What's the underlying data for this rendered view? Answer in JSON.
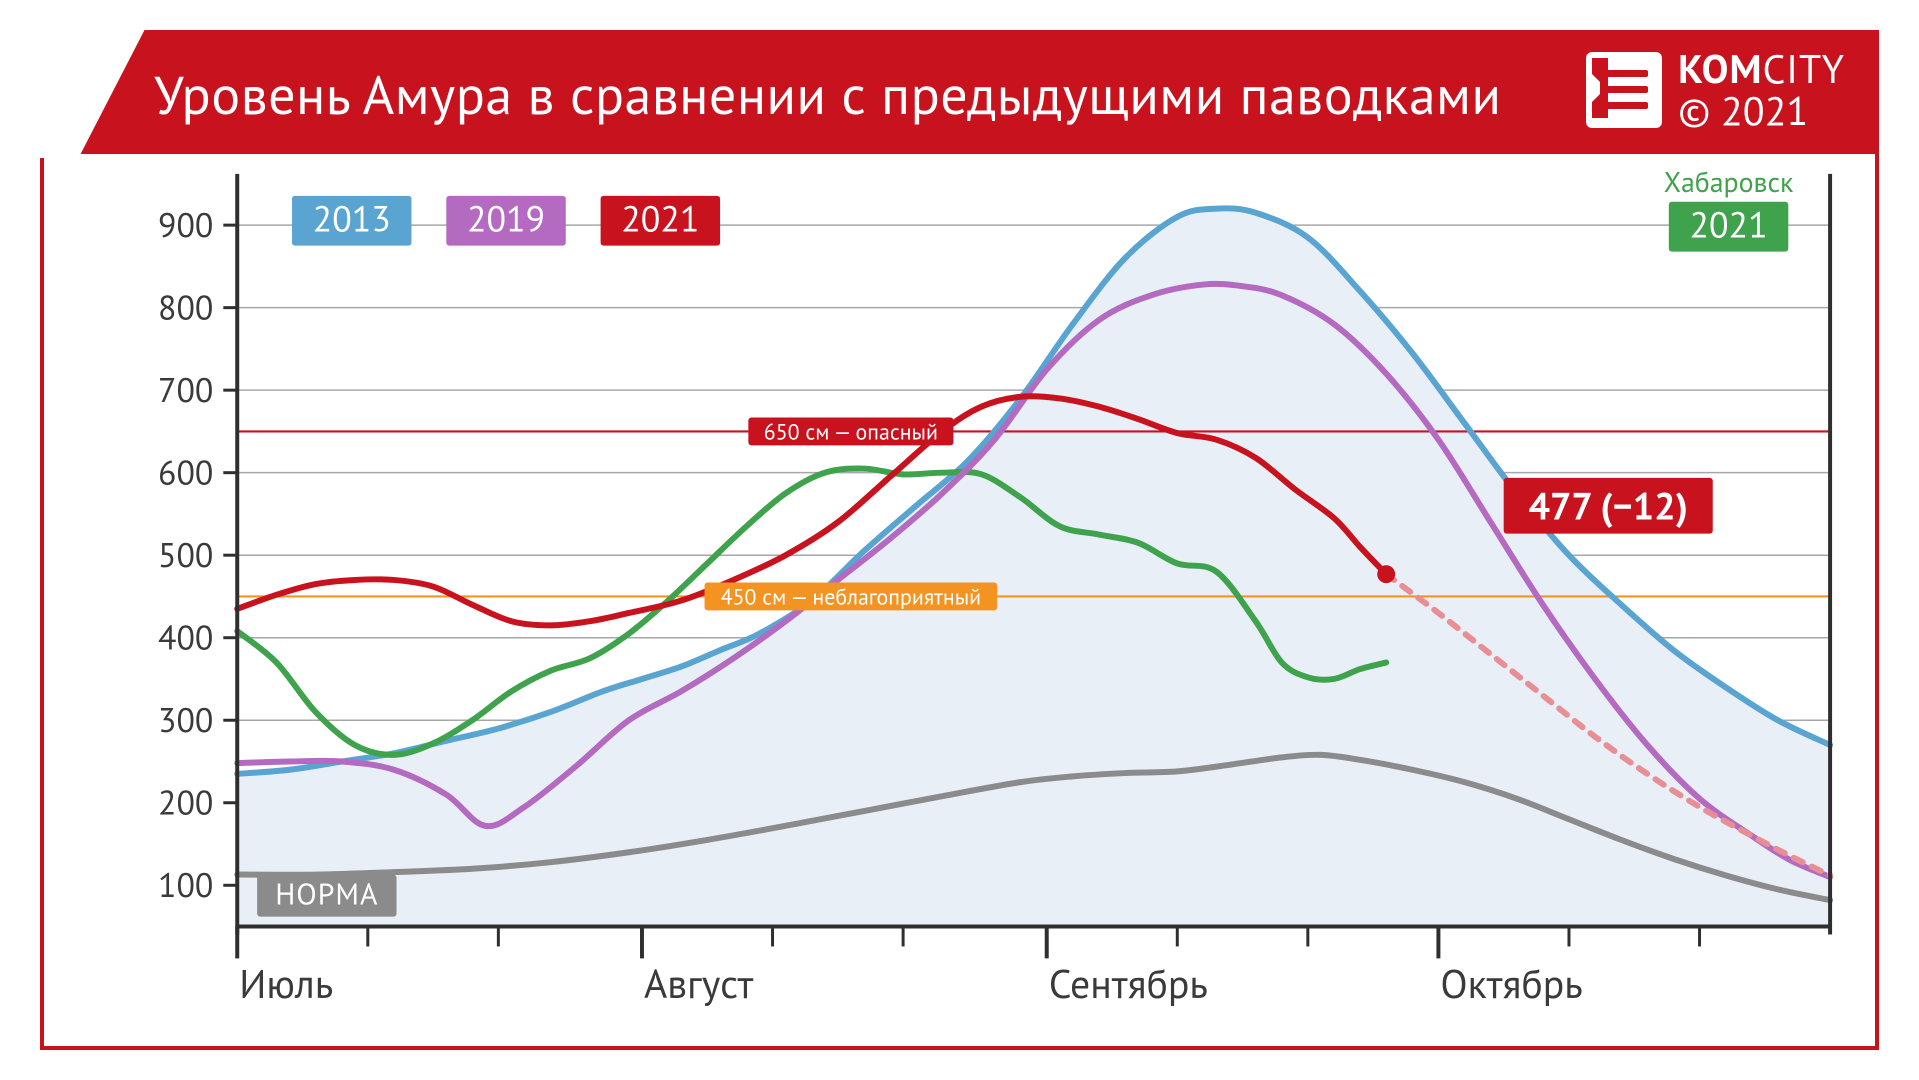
{
  "header": {
    "title": "Уровень Амура в сравнении с предыдущими паводками",
    "brand_kom": "KOM",
    "brand_city": "CITY",
    "copyright": "© 2021"
  },
  "chart": {
    "type": "line",
    "background_color": "#ffffff",
    "frame_color": "#c8121e",
    "area_fill_2013": "#e8eff6",
    "grid_color": "#a7a7a7",
    "axis_color": "#2f2f2f",
    "tick_color": "#2f2f2f",
    "ylim": [
      50,
      950
    ],
    "yticks": [
      100,
      200,
      300,
      400,
      500,
      600,
      700,
      800,
      900
    ],
    "ytick_fontsize": 34,
    "x_range_days": [
      0,
      122
    ],
    "x_months": [
      {
        "label": "Июль",
        "start_day": 0
      },
      {
        "label": "Август",
        "start_day": 31
      },
      {
        "label": "Сентябрь",
        "start_day": 62
      },
      {
        "label": "Октябрь",
        "start_day": 92
      }
    ],
    "x_minor_ticks": [
      10,
      20,
      41,
      51,
      72,
      82,
      102,
      112
    ],
    "xtick_fontsize": 40,
    "series": {
      "s2013": {
        "label": "2013",
        "color": "#59a4d1",
        "stroke_width": 6,
        "area": true,
        "points": [
          [
            0,
            235
          ],
          [
            4,
            240
          ],
          [
            8,
            250
          ],
          [
            12,
            260
          ],
          [
            16,
            275
          ],
          [
            20,
            290
          ],
          [
            24,
            310
          ],
          [
            28,
            335
          ],
          [
            31,
            350
          ],
          [
            34,
            365
          ],
          [
            37,
            385
          ],
          [
            40,
            405
          ],
          [
            44,
            445
          ],
          [
            48,
            505
          ],
          [
            52,
            560
          ],
          [
            56,
            615
          ],
          [
            60,
            690
          ],
          [
            64,
            780
          ],
          [
            68,
            860
          ],
          [
            72,
            910
          ],
          [
            75,
            920
          ],
          [
            78,
            915
          ],
          [
            82,
            885
          ],
          [
            86,
            820
          ],
          [
            90,
            745
          ],
          [
            94,
            660
          ],
          [
            98,
            575
          ],
          [
            102,
            500
          ],
          [
            106,
            440
          ],
          [
            110,
            385
          ],
          [
            114,
            340
          ],
          [
            118,
            300
          ],
          [
            122,
            270
          ]
        ]
      },
      "s2019": {
        "label": "2019",
        "color": "#b56ac1",
        "stroke_width": 6,
        "points": [
          [
            0,
            248
          ],
          [
            4,
            250
          ],
          [
            8,
            250
          ],
          [
            12,
            240
          ],
          [
            16,
            210
          ],
          [
            19,
            172
          ],
          [
            22,
            195
          ],
          [
            26,
            245
          ],
          [
            30,
            300
          ],
          [
            34,
            335
          ],
          [
            38,
            375
          ],
          [
            42,
            420
          ],
          [
            46,
            470
          ],
          [
            50,
            520
          ],
          [
            54,
            575
          ],
          [
            58,
            640
          ],
          [
            62,
            725
          ],
          [
            66,
            785
          ],
          [
            70,
            815
          ],
          [
            74,
            828
          ],
          [
            77,
            826
          ],
          [
            80,
            815
          ],
          [
            84,
            780
          ],
          [
            88,
            720
          ],
          [
            92,
            640
          ],
          [
            96,
            540
          ],
          [
            100,
            440
          ],
          [
            104,
            350
          ],
          [
            108,
            270
          ],
          [
            112,
            205
          ],
          [
            116,
            160
          ],
          [
            119,
            130
          ],
          [
            122,
            110
          ]
        ]
      },
      "s2021": {
        "label": "2021",
        "color": "#c8121e",
        "stroke_width": 6,
        "points": [
          [
            0,
            435
          ],
          [
            3,
            452
          ],
          [
            6,
            465
          ],
          [
            9,
            470
          ],
          [
            12,
            470
          ],
          [
            15,
            462
          ],
          [
            18,
            440
          ],
          [
            21,
            420
          ],
          [
            24,
            415
          ],
          [
            27,
            420
          ],
          [
            30,
            430
          ],
          [
            34,
            445
          ],
          [
            38,
            470
          ],
          [
            42,
            500
          ],
          [
            46,
            540
          ],
          [
            50,
            595
          ],
          [
            54,
            650
          ],
          [
            57,
            680
          ],
          [
            60,
            692
          ],
          [
            63,
            690
          ],
          [
            66,
            680
          ],
          [
            69,
            665
          ],
          [
            72,
            648
          ],
          [
            75,
            640
          ],
          [
            78,
            618
          ],
          [
            81,
            580
          ],
          [
            84,
            545
          ],
          [
            86,
            510
          ],
          [
            88,
            477
          ]
        ]
      },
      "s2021_forecast": {
        "color": "#e88f96",
        "stroke_width": 6,
        "dash": "10 10",
        "points": [
          [
            88,
            477
          ],
          [
            92,
            430
          ],
          [
            96,
            380
          ],
          [
            100,
            330
          ],
          [
            104,
            280
          ],
          [
            108,
            235
          ],
          [
            112,
            195
          ],
          [
            116,
            160
          ],
          [
            119,
            135
          ],
          [
            122,
            112
          ]
        ]
      },
      "khabarovsk": {
        "label": "2021",
        "top_label": "Хабаровск",
        "color": "#3fa24c",
        "stroke_width": 6,
        "points": [
          [
            0,
            408
          ],
          [
            3,
            370
          ],
          [
            6,
            310
          ],
          [
            9,
            270
          ],
          [
            12,
            258
          ],
          [
            15,
            272
          ],
          [
            18,
            300
          ],
          [
            21,
            335
          ],
          [
            24,
            360
          ],
          [
            27,
            375
          ],
          [
            30,
            405
          ],
          [
            33,
            445
          ],
          [
            36,
            490
          ],
          [
            39,
            535
          ],
          [
            42,
            575
          ],
          [
            45,
            600
          ],
          [
            48,
            605
          ],
          [
            51,
            598
          ],
          [
            54,
            600
          ],
          [
            57,
            598
          ],
          [
            60,
            570
          ],
          [
            63,
            535
          ],
          [
            66,
            525
          ],
          [
            69,
            515
          ],
          [
            72,
            490
          ],
          [
            75,
            480
          ],
          [
            78,
            420
          ],
          [
            80,
            370
          ],
          [
            82,
            352
          ],
          [
            84,
            350
          ],
          [
            86,
            362
          ],
          [
            88,
            370
          ]
        ]
      },
      "norma": {
        "label": "НОРМА",
        "color": "#8b8b8b",
        "stroke_width": 6,
        "points": [
          [
            0,
            113
          ],
          [
            6,
            113
          ],
          [
            12,
            116
          ],
          [
            18,
            120
          ],
          [
            24,
            128
          ],
          [
            30,
            140
          ],
          [
            36,
            155
          ],
          [
            42,
            172
          ],
          [
            48,
            190
          ],
          [
            54,
            208
          ],
          [
            60,
            225
          ],
          [
            64,
            232
          ],
          [
            68,
            236
          ],
          [
            72,
            238
          ],
          [
            76,
            246
          ],
          [
            80,
            255
          ],
          [
            83,
            258
          ],
          [
            86,
            252
          ],
          [
            90,
            240
          ],
          [
            94,
            225
          ],
          [
            98,
            205
          ],
          [
            102,
            180
          ],
          [
            106,
            155
          ],
          [
            110,
            132
          ],
          [
            114,
            112
          ],
          [
            118,
            95
          ],
          [
            122,
            82
          ]
        ]
      }
    },
    "threshold_lines": [
      {
        "value": 650,
        "color": "#c8121e",
        "label": "650 см — опасный",
        "label_bg": "#c8121e",
        "stroke_width": 2.2
      },
      {
        "value": 450,
        "color": "#f39322",
        "label": "450 см — неблагоприятный",
        "label_bg": "#f39322",
        "stroke_width": 2.2
      }
    ],
    "callout": {
      "text": "477 (−12)",
      "bg": "#c8121e",
      "point_day": 88,
      "point_value": 477,
      "box_day": 97,
      "box_value": 560
    },
    "norma_tag_bg": "#8b8b8b"
  }
}
